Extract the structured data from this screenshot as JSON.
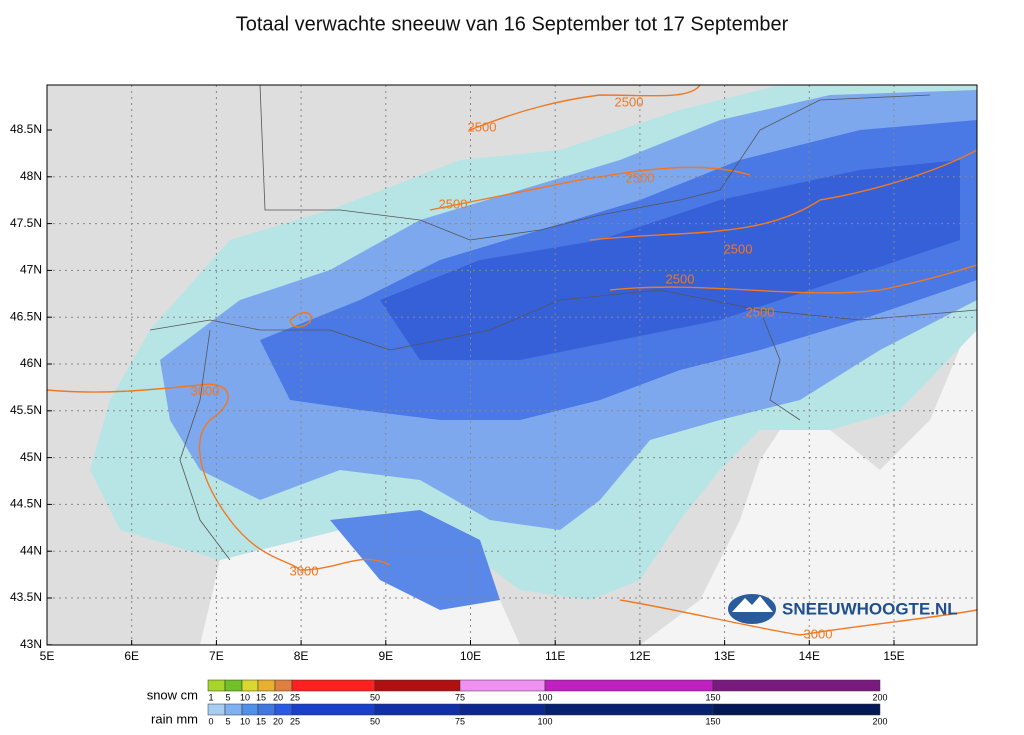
{
  "title": "Totaal verwachte sneeuw van 16 September tot 17 September",
  "lat_labels": [
    "48.5N",
    "48N",
    "47.5N",
    "47N",
    "46.5N",
    "46N",
    "45.5N",
    "45N",
    "44.5N",
    "44N",
    "43.5N",
    "43N"
  ],
  "lon_labels": [
    "5E",
    "6E",
    "7E",
    "8E",
    "9E",
    "10E",
    "11E",
    "12E",
    "13E",
    "14E",
    "15E"
  ],
  "contour_labels": [
    "2500",
    "2500",
    "2500",
    "2500",
    "2500",
    "2500",
    "2500",
    "3000",
    "3000",
    "3000"
  ],
  "logo": "SNEEUWHOOGTE.NL",
  "legend": {
    "snow": {
      "label": "snow cm",
      "ticks": [
        1,
        5,
        10,
        15,
        20,
        25,
        50,
        75,
        100,
        150,
        200
      ]
    },
    "rain": {
      "label": "rain mm",
      "ticks": [
        0,
        5,
        10,
        15,
        20,
        25,
        50,
        75,
        100,
        150,
        200
      ]
    }
  }
}
